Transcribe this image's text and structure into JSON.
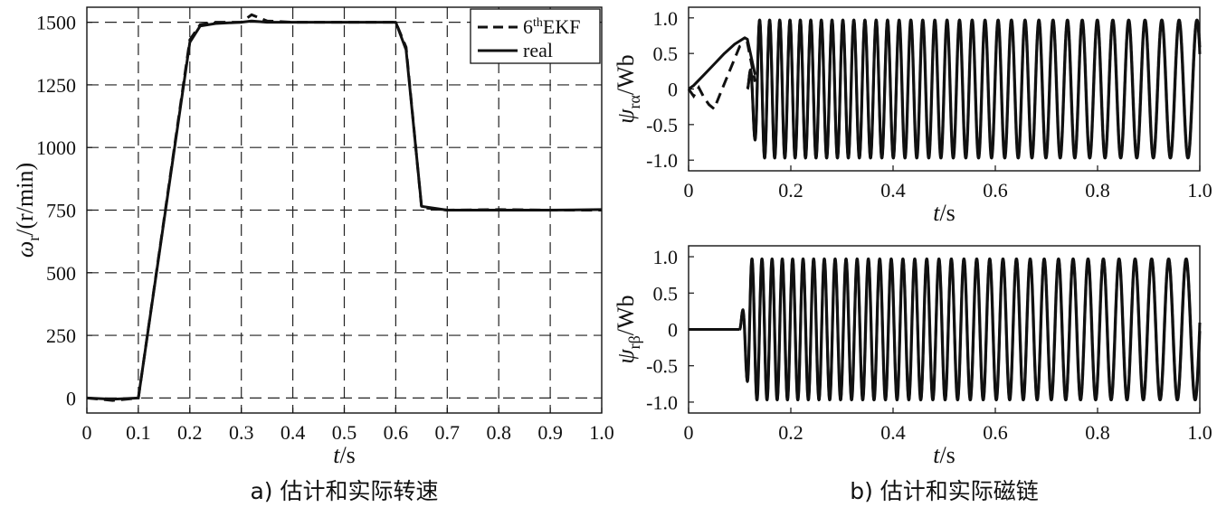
{
  "chart_data": [
    {
      "id": "speed",
      "type": "line",
      "caption": "a) 估计和实际转速",
      "xlabel": {
        "italic": "t",
        "rest": "/s"
      },
      "ylabel": {
        "sym": "ω",
        "sub": "r",
        "rest": "/(r/min)"
      },
      "xlim": [
        0,
        1.0
      ],
      "ylim": [
        -60,
        1560
      ],
      "xticks": [
        0,
        0.1,
        0.2,
        0.3,
        0.4,
        0.5,
        0.6,
        0.7,
        0.8,
        0.9,
        1.0
      ],
      "xtick_labels": [
        "0",
        "0.1",
        "0.2",
        "0.3",
        "0.4",
        "0.5",
        "0.6",
        "0.7",
        "0.8",
        "0.9",
        "1.0"
      ],
      "yticks": [
        0,
        250,
        500,
        750,
        1000,
        1250,
        1500
      ],
      "ytick_labels": [
        "0",
        "250",
        "500",
        "750",
        "1000",
        "1250",
        "1500"
      ],
      "grid": true,
      "legend_position": "top-right",
      "legend": [
        {
          "name": "6thEKF",
          "base": "6",
          "sup": "th",
          "tail": "EKF",
          "style": "dashed"
        },
        {
          "name": "real",
          "style": "solid"
        }
      ],
      "series": [
        {
          "name": "6thEKF",
          "style": "dashed",
          "x": [
            0,
            0.05,
            0.1,
            0.2,
            0.22,
            0.25,
            0.3,
            0.32,
            0.35,
            0.4,
            0.5,
            0.6,
            0.62,
            0.65,
            0.7,
            0.8,
            0.9,
            1.0
          ],
          "y": [
            0,
            -10,
            0,
            1430,
            1490,
            1500,
            1500,
            1530,
            1505,
            1500,
            1500,
            1500,
            1400,
            760,
            750,
            752,
            750,
            750
          ]
        },
        {
          "name": "real",
          "style": "solid",
          "x": [
            0,
            0.05,
            0.1,
            0.2,
            0.22,
            0.25,
            0.3,
            0.32,
            0.35,
            0.4,
            0.5,
            0.6,
            0.62,
            0.65,
            0.7,
            0.8,
            0.9,
            1.0
          ],
          "y": [
            0,
            -5,
            0,
            1420,
            1485,
            1495,
            1500,
            1505,
            1500,
            1500,
            1500,
            1500,
            1390,
            765,
            750,
            750,
            750,
            752
          ]
        }
      ]
    },
    {
      "id": "flux_alpha",
      "type": "line",
      "caption": "",
      "xlabel": {
        "italic": "t",
        "rest": "/s"
      },
      "ylabel": {
        "sym": "ψ",
        "sub": "rα",
        "rest": "/Wb"
      },
      "xlim": [
        0,
        1.0
      ],
      "ylim": [
        -1.15,
        1.15
      ],
      "xticks": [
        0,
        0.2,
        0.4,
        0.6,
        0.8,
        1.0
      ],
      "xtick_labels": [
        "0",
        "0.2",
        "0.4",
        "0.6",
        "0.8",
        "1.0"
      ],
      "yticks": [
        -1.0,
        -0.5,
        0,
        0.5,
        1.0
      ],
      "ytick_labels": [
        "-1.0",
        "-0.5",
        "0",
        "0.5",
        "1.0"
      ],
      "grid": false,
      "series": [
        {
          "name": "6thEKF",
          "style": "dashed",
          "x": [
            0,
            0.01,
            0.02,
            0.03,
            0.04,
            0.05,
            0.06,
            0.08,
            0.1,
            0.115,
            0.13
          ],
          "y": [
            0,
            -0.1,
            0.02,
            -0.12,
            -0.22,
            -0.28,
            -0.1,
            0.25,
            0.6,
            0.65,
            0.1
          ]
        },
        {
          "name": "real",
          "style": "solid",
          "x": [
            0,
            0.01,
            0.03,
            0.05,
            0.07,
            0.09,
            0.11,
            0.115,
            0.13
          ],
          "y": [
            0,
            0.05,
            0.2,
            0.35,
            0.5,
            0.63,
            0.72,
            0.7,
            0.2
          ]
        }
      ],
      "oscillation": {
        "start": 0.115,
        "end": 1.0,
        "amplitude": 0.97,
        "freq_start": 52,
        "freq_end": 28
      }
    },
    {
      "id": "flux_beta",
      "type": "line",
      "caption": "b) 估计和实际磁链",
      "xlabel": {
        "italic": "t",
        "rest": "/s"
      },
      "ylabel": {
        "sym": "ψ",
        "sub": "rβ",
        "rest": "/Wb"
      },
      "xlim": [
        0,
        1.0
      ],
      "ylim": [
        -1.15,
        1.15
      ],
      "xticks": [
        0,
        0.2,
        0.4,
        0.6,
        0.8,
        1.0
      ],
      "xtick_labels": [
        "0",
        "0.2",
        "0.4",
        "0.6",
        "0.8",
        "1.0"
      ],
      "yticks": [
        -1.0,
        -0.5,
        0,
        0.5,
        1.0
      ],
      "ytick_labels": [
        "-1.0",
        "-0.5",
        "0",
        "0.5",
        "1.0"
      ],
      "grid": false,
      "series": [
        {
          "name": "real",
          "style": "solid",
          "x": [
            0,
            0.1
          ],
          "y": [
            0,
            0
          ]
        }
      ],
      "oscillation": {
        "start": 0.1,
        "end": 1.0,
        "amplitude": 0.97,
        "freq_start": 52,
        "freq_end": 28
      }
    }
  ]
}
